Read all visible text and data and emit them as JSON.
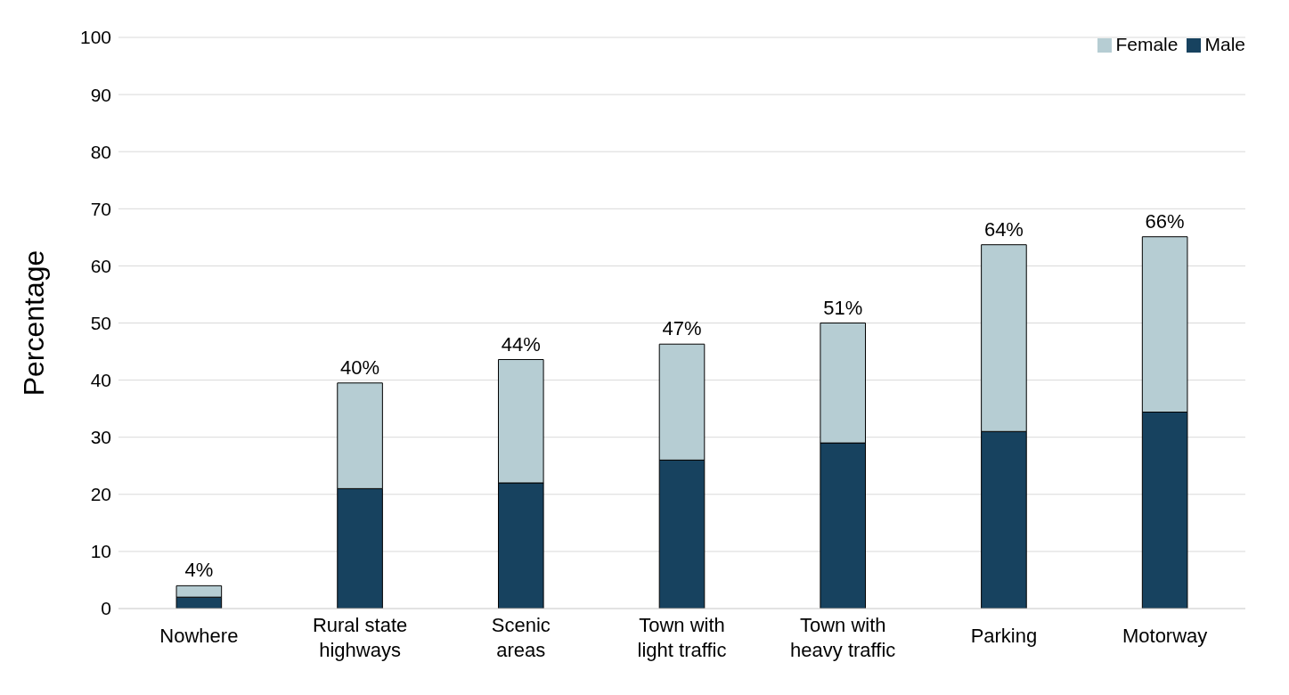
{
  "chart_data": {
    "type": "bar",
    "ylabel": "Percentage",
    "categories": [
      "Nowhere",
      "Rural state highways",
      "Scenic areas",
      "Town with light traffic",
      "Town with heavy traffic",
      "Parking",
      "Motorway"
    ],
    "stacked": true,
    "series": [
      {
        "name": "Male",
        "color": "#17425f",
        "values": [
          2,
          21,
          22,
          26,
          29,
          31,
          34.4
        ]
      },
      {
        "name": "Female",
        "color": "#b6cdd3",
        "values": [
          2,
          18.5,
          21.6,
          20.3,
          21,
          32.7,
          30.7
        ]
      }
    ],
    "totals": [
      "4%",
      "40%",
      "44%",
      "47%",
      "51%",
      "64%",
      "66%"
    ],
    "ylim": [
      0,
      100
    ],
    "yticks": [
      0,
      10,
      20,
      30,
      40,
      50,
      60,
      70,
      80,
      90,
      100
    ],
    "grid": "y",
    "legend": "top right"
  }
}
